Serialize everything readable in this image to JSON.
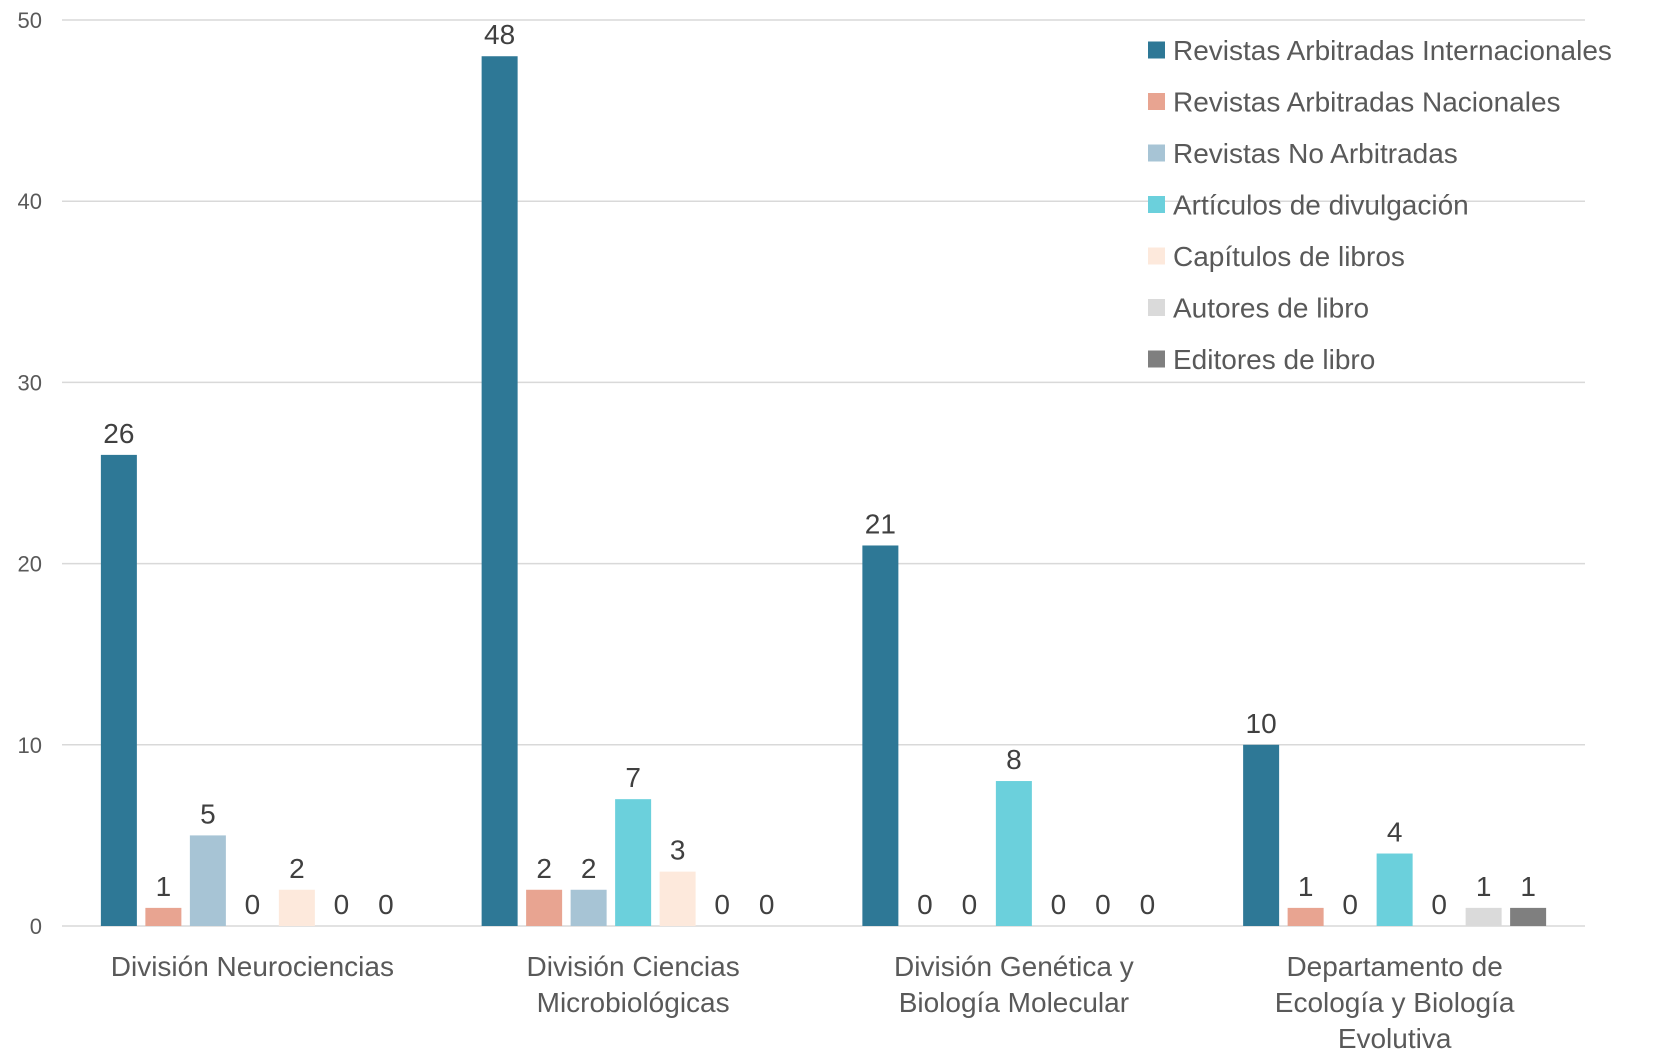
{
  "chart_data": {
    "type": "bar",
    "categories": [
      [
        "División Neurociencias"
      ],
      [
        "División Ciencias",
        "Microbiológicas"
      ],
      [
        "División Genética y",
        "Biología Molecular"
      ],
      [
        "Departamento de",
        "Ecología y Biología",
        "Evolutiva"
      ]
    ],
    "series": [
      {
        "name": "Revistas Arbitradas Internacionales",
        "color": "#2e7896",
        "values": [
          26,
          48,
          21,
          10
        ]
      },
      {
        "name": "Revistas Arbitradas Nacionales",
        "color": "#e8a491",
        "values": [
          1,
          2,
          0,
          1
        ]
      },
      {
        "name": "Revistas No Arbitradas",
        "color": "#a7c4d5",
        "values": [
          5,
          2,
          0,
          0
        ]
      },
      {
        "name": "Artículos de divulgación",
        "color": "#6bd0dc",
        "values": [
          0,
          7,
          8,
          4
        ]
      },
      {
        "name": "Capítulos de libros",
        "color": "#fde9dc",
        "values": [
          2,
          3,
          0,
          0
        ]
      },
      {
        "name": "Autores de libro",
        "color": "#dadada",
        "values": [
          0,
          0,
          0,
          1
        ]
      },
      {
        "name": "Editores de libro",
        "color": "#7f7f7f",
        "values": [
          0,
          0,
          0,
          1
        ]
      }
    ],
    "ylim": [
      0,
      50
    ],
    "yticks": [
      0,
      10,
      20,
      30,
      40,
      50
    ],
    "grid": true,
    "legend_position": "top-right",
    "title": "",
    "xlabel": "",
    "ylabel": ""
  }
}
